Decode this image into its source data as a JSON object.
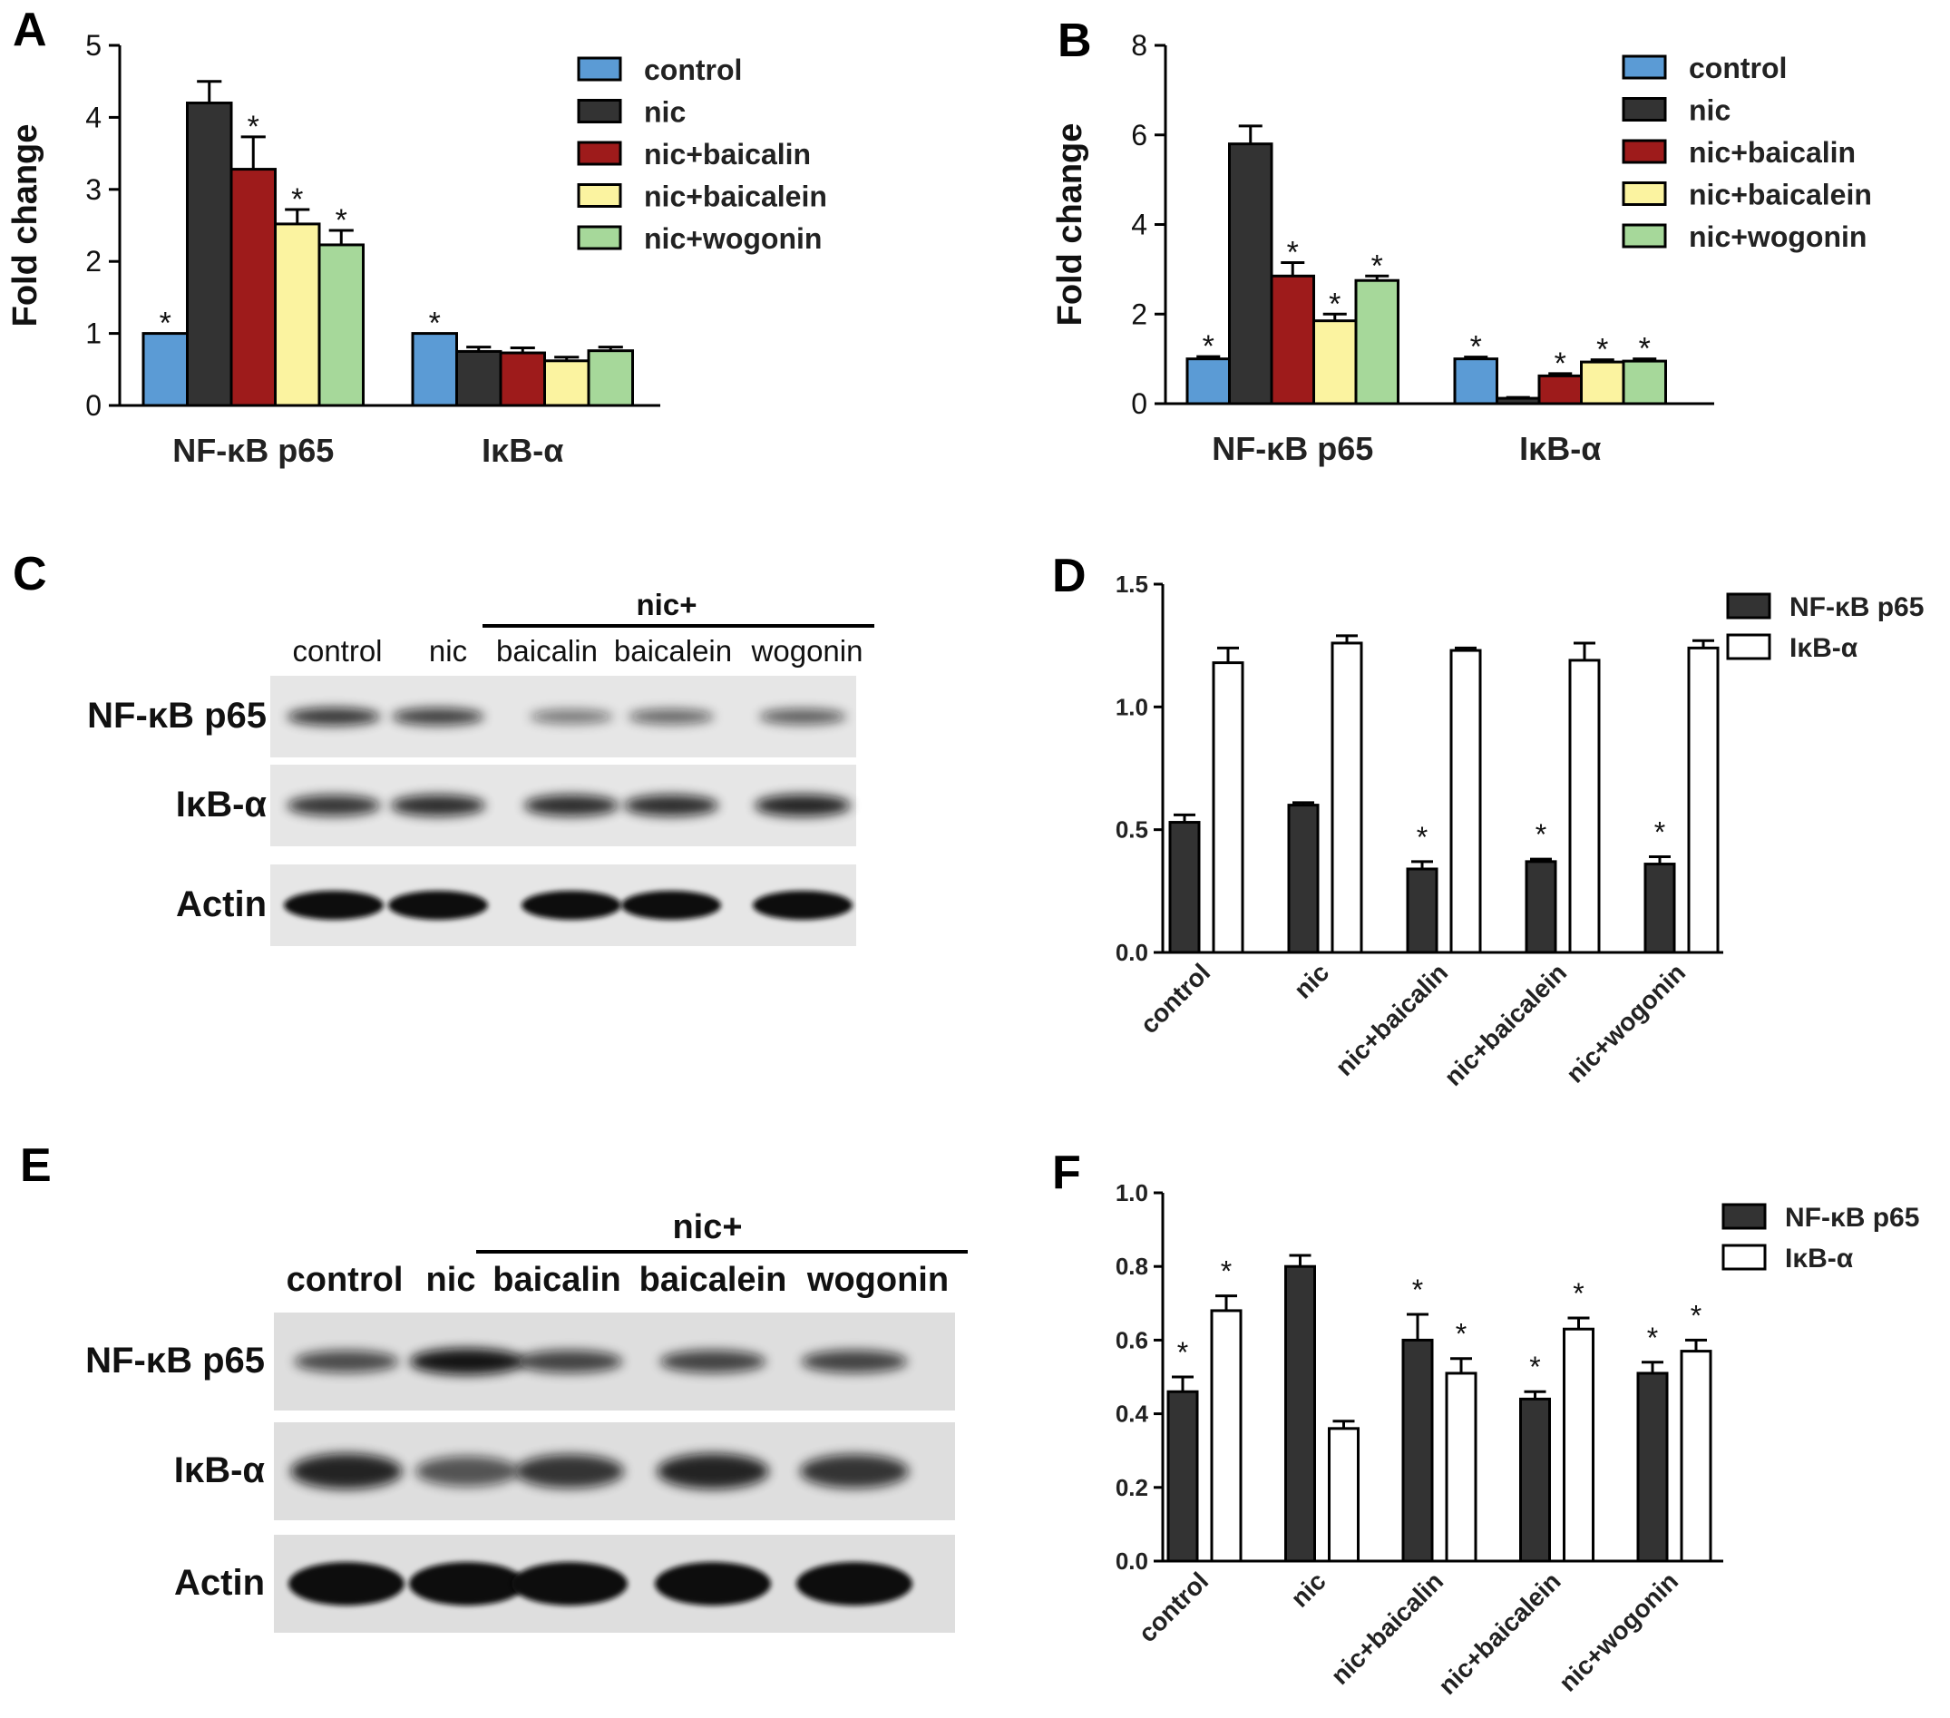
{
  "panel_labels": [
    "A",
    "B",
    "C",
    "D",
    "E",
    "F"
  ],
  "colors": {
    "control": "#5b9bd5",
    "nic": "#333333",
    "nic+baicalin": "#9e1b1b",
    "nic+baicalein": "#fbf3a0",
    "nic+wogonin": "#a6d89a",
    "NF-κB p65": "#333333",
    "IκB-α": "#ffffff",
    "asterisk": "#111111"
  },
  "chart_data": [
    {
      "panel": "A",
      "type": "bar",
      "ylabel": "Fold change",
      "ylim": [
        0,
        5
      ],
      "yticks": [
        "0",
        "1",
        "2",
        "3",
        "4",
        "5"
      ],
      "categories": [
        "NF-κB p65",
        "IκB-α"
      ],
      "legend": {
        "placement": "top-right",
        "entries": [
          "control",
          "nic",
          "nic+baicalin",
          "nic+baicalein",
          "nic+wogonin"
        ]
      },
      "series": [
        {
          "name": "control",
          "values": [
            1.0,
            1.0
          ],
          "errors": [
            0,
            0
          ],
          "stars": [
            true,
            true
          ]
        },
        {
          "name": "nic",
          "values": [
            4.2,
            0.75
          ],
          "errors": [
            0.3,
            0.06
          ],
          "stars": [
            false,
            false
          ]
        },
        {
          "name": "nic+baicalin",
          "values": [
            3.28,
            0.73
          ],
          "errors": [
            0.45,
            0.07
          ],
          "stars": [
            true,
            false
          ]
        },
        {
          "name": "nic+baicalein",
          "values": [
            2.52,
            0.62
          ],
          "errors": [
            0.2,
            0.05
          ],
          "stars": [
            true,
            false
          ]
        },
        {
          "name": "nic+wogonin",
          "values": [
            2.23,
            0.76
          ],
          "errors": [
            0.2,
            0.05
          ],
          "stars": [
            true,
            false
          ]
        }
      ]
    },
    {
      "panel": "B",
      "type": "bar",
      "ylabel": "Fold change",
      "ylim": [
        0,
        8
      ],
      "yticks": [
        "0",
        "2",
        "4",
        "6",
        "8"
      ],
      "categories": [
        "NF-κB p65",
        "IκB-α"
      ],
      "legend": {
        "placement": "top-right",
        "entries": [
          "control",
          "nic",
          "nic+baicalin",
          "nic+baicalein",
          "nic+wogonin"
        ]
      },
      "series": [
        {
          "name": "control",
          "values": [
            1.0,
            1.0
          ],
          "errors": [
            0.05,
            0.04
          ],
          "stars": [
            true,
            true
          ]
        },
        {
          "name": "nic",
          "values": [
            5.8,
            0.12
          ],
          "errors": [
            0.4,
            0.02
          ],
          "stars": [
            false,
            false
          ]
        },
        {
          "name": "nic+baicalin",
          "values": [
            2.85,
            0.62
          ],
          "errors": [
            0.3,
            0.05
          ],
          "stars": [
            true,
            true
          ]
        },
        {
          "name": "nic+baicalein",
          "values": [
            1.85,
            0.93
          ],
          "errors": [
            0.15,
            0.05
          ],
          "stars": [
            true,
            true
          ]
        },
        {
          "name": "nic+wogonin",
          "values": [
            2.75,
            0.95
          ],
          "errors": [
            0.1,
            0.05
          ],
          "stars": [
            true,
            true
          ]
        }
      ]
    },
    {
      "panel": "D",
      "type": "bar",
      "ylim": [
        0,
        1.5
      ],
      "yticks": [
        "0.0",
        "0.5",
        "1.0",
        "1.5"
      ],
      "categories": [
        "control",
        "nic",
        "nic+baicalin",
        "nic+baicalein",
        "nic+wogonin"
      ],
      "legend": {
        "placement": "top-right",
        "entries": [
          "NF-κB p65",
          "IκB-α"
        ]
      },
      "series": [
        {
          "name": "NF-κB p65",
          "values": [
            0.53,
            0.6,
            0.34,
            0.37,
            0.36
          ],
          "errors": [
            0.03,
            0.01,
            0.03,
            0.01,
            0.03
          ],
          "stars": [
            false,
            false,
            true,
            true,
            true
          ]
        },
        {
          "name": "IκB-α",
          "values": [
            1.18,
            1.26,
            1.23,
            1.19,
            1.24
          ],
          "errors": [
            0.06,
            0.03,
            0.01,
            0.07,
            0.03
          ],
          "stars": [
            false,
            false,
            false,
            false,
            false
          ]
        }
      ]
    },
    {
      "panel": "F",
      "type": "bar",
      "ylim": [
        0,
        1.0
      ],
      "yticks": [
        "0.0",
        "0.2",
        "0.4",
        "0.6",
        "0.8",
        "1.0"
      ],
      "categories": [
        "control",
        "nic",
        "nic+baicalin",
        "nic+baicalein",
        "nic+wogonin"
      ],
      "legend": {
        "placement": "top-right",
        "entries": [
          "NF-κB p65",
          "IκB-α"
        ]
      },
      "series": [
        {
          "name": "NF-κB p65",
          "values": [
            0.46,
            0.8,
            0.6,
            0.44,
            0.51
          ],
          "errors": [
            0.04,
            0.03,
            0.07,
            0.02,
            0.03
          ],
          "stars": [
            true,
            false,
            true,
            true,
            true
          ]
        },
        {
          "name": "IκB-α",
          "values": [
            0.68,
            0.36,
            0.51,
            0.63,
            0.57
          ],
          "errors": [
            0.04,
            0.02,
            0.04,
            0.03,
            0.03
          ],
          "stars": [
            true,
            false,
            true,
            true,
            true
          ]
        }
      ]
    }
  ],
  "blots": {
    "C": {
      "group_label": "nic+",
      "lanes": [
        "control",
        "nic",
        "baicalin",
        "baicalein",
        "wogonin"
      ],
      "rows": [
        "NF-κB p65",
        "IκB-α",
        "Actin"
      ],
      "intensity": [
        [
          0.75,
          0.7,
          0.35,
          0.45,
          0.5
        ],
        [
          0.75,
          0.8,
          0.8,
          0.8,
          0.85
        ],
        [
          1,
          1,
          1,
          1,
          1
        ]
      ]
    },
    "E": {
      "group_label": "nic+",
      "lanes": [
        "control",
        "nic",
        "baicalin",
        "baicalein",
        "wogonin"
      ],
      "rows": [
        "NF-κB p65",
        "IκB-α",
        "Actin"
      ],
      "intensity": [
        [
          0.6,
          0.95,
          0.65,
          0.65,
          0.65
        ],
        [
          0.85,
          0.55,
          0.75,
          0.85,
          0.75
        ],
        [
          1,
          1,
          1,
          1,
          1
        ]
      ]
    }
  }
}
